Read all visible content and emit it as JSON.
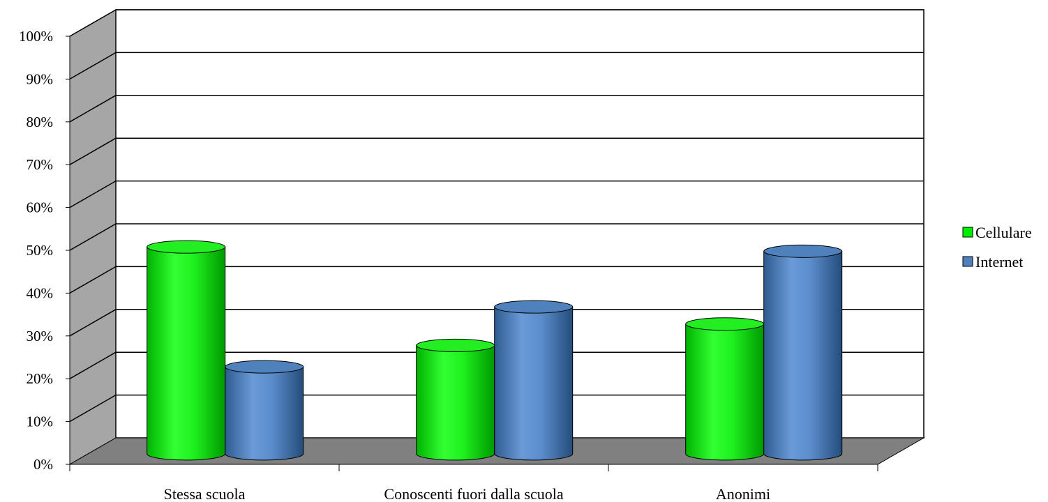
{
  "chart_data": {
    "type": "bar",
    "style": "3d-cylinder",
    "title": "",
    "xlabel": "",
    "ylabel": "",
    "categories": [
      "Stessa scuola",
      "Conoscenti fuori dalla scuola",
      "Anonimi"
    ],
    "series": [
      {
        "name": "Cellulare",
        "values": [
          48,
          25,
          30
        ],
        "color": "#00ee00"
      },
      {
        "name": "Internet",
        "values": [
          20,
          34,
          47
        ],
        "color": "#4f81bd"
      }
    ],
    "ylim": [
      0,
      100
    ],
    "yticks": [
      "0%",
      "10%",
      "20%",
      "30%",
      "40%",
      "50%",
      "60%",
      "70%",
      "80%",
      "90%",
      "100%"
    ],
    "grid": true,
    "legend_position": "right"
  }
}
